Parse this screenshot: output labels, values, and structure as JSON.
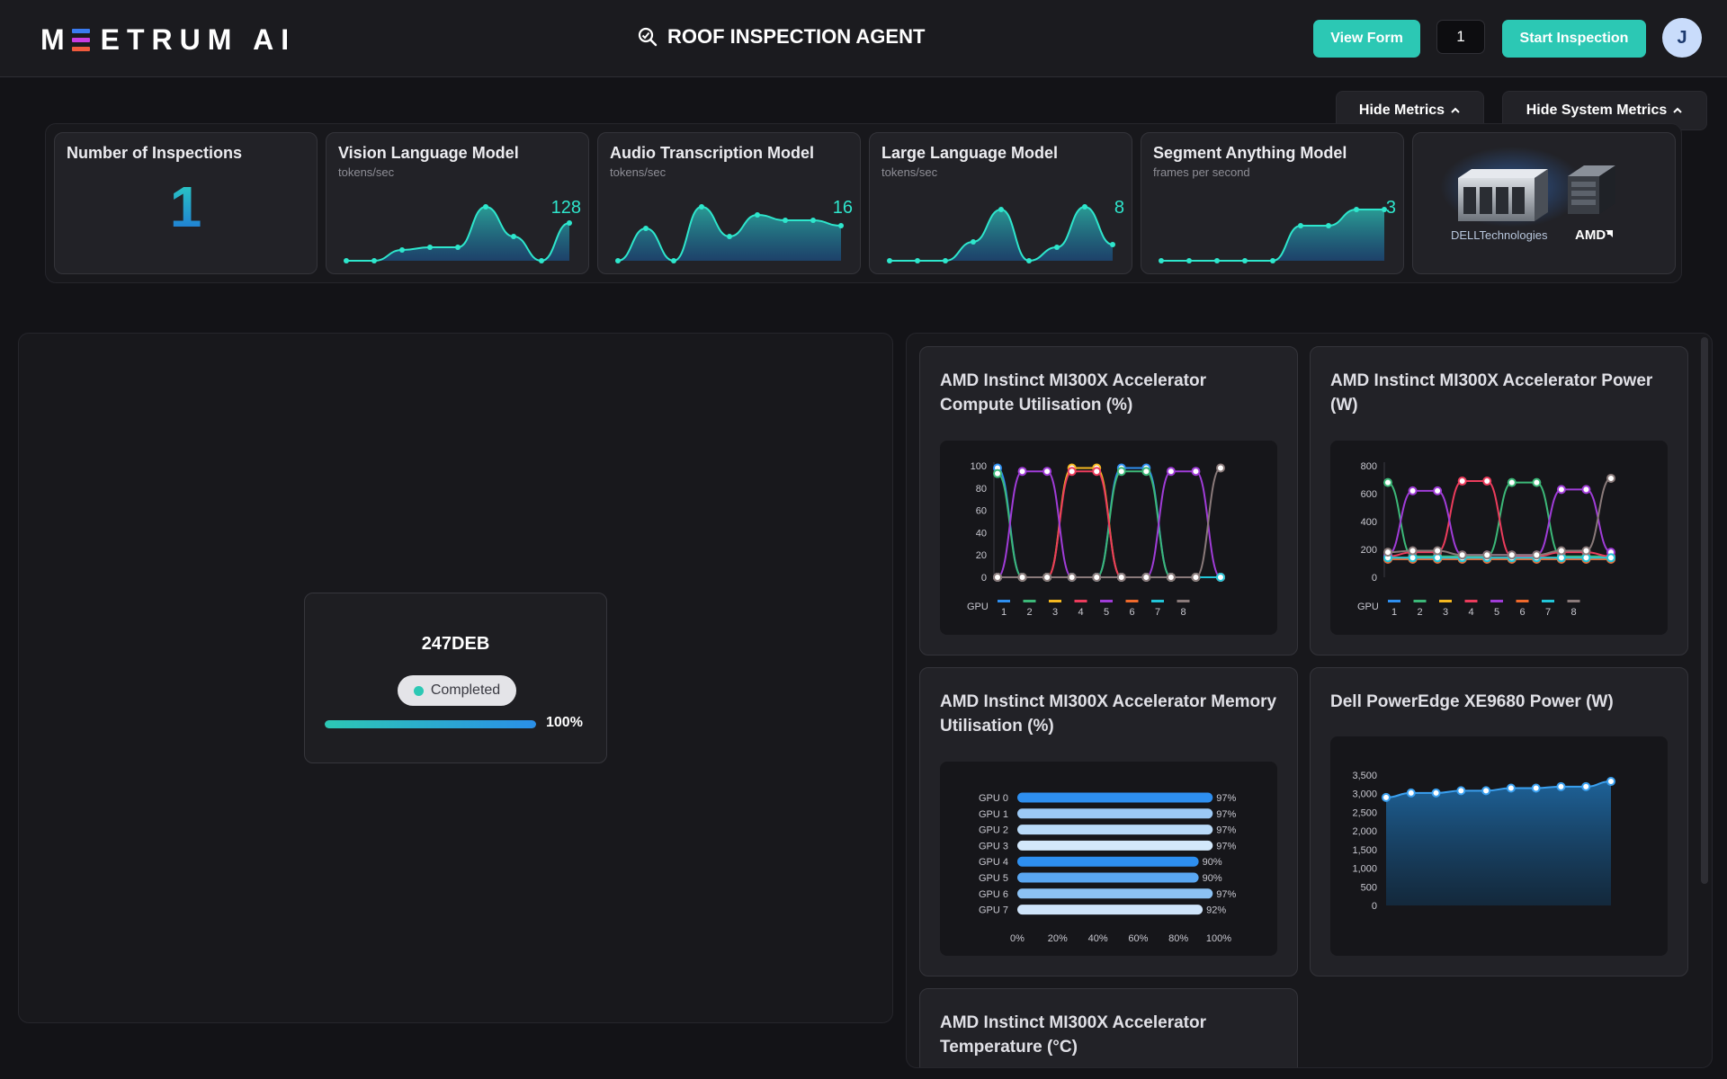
{
  "header": {
    "logo_text": "ETRUM AI",
    "logo_first": "M",
    "title": "ROOF INSPECTION AGENT",
    "view_form_label": "View Form",
    "count_value": "1",
    "start_label": "Start Inspection",
    "avatar_initial": "J"
  },
  "toggles": {
    "hide_metrics": "Hide Metrics",
    "hide_system_metrics": "Hide System Metrics"
  },
  "metrics": {
    "inspections": {
      "title": "Number of Inspections",
      "value": "1"
    },
    "vlm": {
      "title": "Vision Language Model",
      "unit": "tokens/sec",
      "value": "128",
      "series": [
        0,
        0,
        20,
        25,
        25,
        100,
        45,
        0,
        70
      ]
    },
    "atm": {
      "title": "Audio Transcription Model",
      "unit": "tokens/sec",
      "value": "16",
      "series": [
        0,
        60,
        0,
        100,
        45,
        85,
        75,
        75,
        65
      ]
    },
    "llm": {
      "title": "Large Language Model",
      "unit": "tokens/sec",
      "value": "8",
      "series": [
        0,
        0,
        0,
        35,
        95,
        0,
        25,
        100,
        30
      ]
    },
    "sam": {
      "title": "Segment Anything Model",
      "unit": "frames per second",
      "value": "3",
      "series": [
        0,
        0,
        0,
        0,
        0,
        65,
        65,
        95,
        95
      ]
    }
  },
  "partners": {
    "dell": "DELLTechnologies",
    "amd": "AMD"
  },
  "job": {
    "id": "247DEB",
    "status": "Completed",
    "progress": 100,
    "progress_label": "100%"
  },
  "charts": {
    "compute_title": "AMD Instinct MI300X Accelerator Compute Utilisation (%)",
    "power_title": "AMD Instinct MI300X Accelerator Power (W)",
    "memory_title": "AMD Instinct MI300X Accelerator Memory Utilisation (%)",
    "server_title": "Dell PowerEdge XE9680 Power (W)",
    "temp_title": "AMD Instinct MI300X Accelerator Temperature (°C)",
    "gpu_legend_label": "GPU"
  },
  "chart_data": [
    {
      "type": "line",
      "title": "AMD Instinct MI300X Accelerator Compute Utilisation (%)",
      "ylim": [
        0,
        100
      ],
      "yticks": [
        "0",
        "20",
        "40",
        "60",
        "80",
        "100"
      ],
      "legend_title": "GPU",
      "legend": [
        "1",
        "2",
        "3",
        "4",
        "5",
        "6",
        "7",
        "8"
      ],
      "colors": [
        "#2e8ff0",
        "#3cb878",
        "#f5b820",
        "#ec3c5c",
        "#a03cd8",
        "#f06a2c",
        "#22c5d8",
        "#8a7a7a"
      ],
      "series": [
        {
          "name": "1",
          "values": [
            98,
            0,
            0,
            0,
            0,
            98,
            98,
            0,
            0,
            0
          ]
        },
        {
          "name": "2",
          "values": [
            93,
            0,
            0,
            0,
            0,
            95,
            95,
            0,
            0,
            0
          ]
        },
        {
          "name": "3",
          "values": [
            0,
            0,
            0,
            98,
            98,
            0,
            0,
            0,
            0,
            0
          ]
        },
        {
          "name": "4",
          "values": [
            0,
            0,
            0,
            95,
            95,
            0,
            0,
            0,
            0,
            0
          ]
        },
        {
          "name": "5",
          "values": [
            0,
            95,
            95,
            0,
            0,
            0,
            0,
            95,
            95,
            0
          ]
        },
        {
          "name": "6",
          "values": [
            0,
            0,
            0,
            0,
            0,
            0,
            0,
            0,
            0,
            0
          ]
        },
        {
          "name": "7",
          "values": [
            0,
            0,
            0,
            0,
            0,
            0,
            0,
            0,
            0,
            0
          ]
        },
        {
          "name": "8",
          "values": [
            0,
            0,
            0,
            0,
            0,
            0,
            0,
            0,
            0,
            98
          ]
        }
      ]
    },
    {
      "type": "line",
      "title": "AMD Instinct MI300X Accelerator Power (W)",
      "ylim": [
        0,
        800
      ],
      "yticks": [
        "0",
        "200",
        "400",
        "600",
        "800"
      ],
      "legend_title": "GPU",
      "legend": [
        "1",
        "2",
        "3",
        "4",
        "5",
        "6",
        "7",
        "8"
      ],
      "colors": [
        "#2e8ff0",
        "#3cb878",
        "#f5b820",
        "#ec3c5c",
        "#a03cd8",
        "#f06a2c",
        "#22c5d8",
        "#8a7a7a"
      ],
      "series": [
        {
          "name": "1",
          "values": [
            130,
            130,
            130,
            130,
            130,
            130,
            130,
            130,
            130,
            130
          ]
        },
        {
          "name": "2",
          "values": [
            680,
            150,
            150,
            150,
            150,
            680,
            680,
            150,
            150,
            150
          ]
        },
        {
          "name": "3",
          "values": [
            140,
            140,
            140,
            140,
            140,
            140,
            140,
            140,
            140,
            140
          ]
        },
        {
          "name": "4",
          "values": [
            150,
            180,
            180,
            690,
            690,
            150,
            150,
            180,
            180,
            150
          ]
        },
        {
          "name": "5",
          "values": [
            160,
            620,
            620,
            160,
            160,
            160,
            160,
            630,
            630,
            180
          ]
        },
        {
          "name": "6",
          "values": [
            130,
            130,
            130,
            130,
            130,
            130,
            130,
            130,
            130,
            130
          ]
        },
        {
          "name": "7",
          "values": [
            140,
            140,
            140,
            140,
            140,
            140,
            140,
            140,
            140,
            140
          ]
        },
        {
          "name": "8",
          "values": [
            180,
            190,
            190,
            160,
            160,
            160,
            160,
            190,
            190,
            710
          ]
        }
      ]
    },
    {
      "type": "bar",
      "orientation": "horizontal",
      "title": "AMD Instinct MI300X Accelerator Memory Utilisation (%)",
      "categories": [
        "GPU 0",
        "GPU 1",
        "GPU 2",
        "GPU 3",
        "GPU 4",
        "GPU 5",
        "GPU 6",
        "GPU 7"
      ],
      "values": [
        97,
        97,
        97,
        97,
        90,
        90,
        97,
        92
      ],
      "value_labels": [
        "97%",
        "97%",
        "97%",
        "97%",
        "90%",
        "90%",
        "97%",
        "92%"
      ],
      "xlim": [
        0,
        100
      ],
      "xticks": [
        "0%",
        "20%",
        "40%",
        "60%",
        "80%",
        "100%"
      ],
      "colors": [
        "#2e8ff0",
        "#9cc9f5",
        "#b9daf8",
        "#d3e8fb",
        "#2e8ff0",
        "#5aa7f2",
        "#8cc2f4",
        "#cfe4fa"
      ]
    },
    {
      "type": "area",
      "title": "Dell PowerEdge XE9680 Power (W)",
      "values": [
        2900,
        3020,
        3020,
        3080,
        3080,
        3150,
        3150,
        3190,
        3190,
        3330
      ],
      "ylim": [
        0,
        3500
      ],
      "yticks": [
        "0",
        "500",
        "1,000",
        "1,500",
        "2,000",
        "2,500",
        "3,000",
        "3,500"
      ]
    }
  ]
}
